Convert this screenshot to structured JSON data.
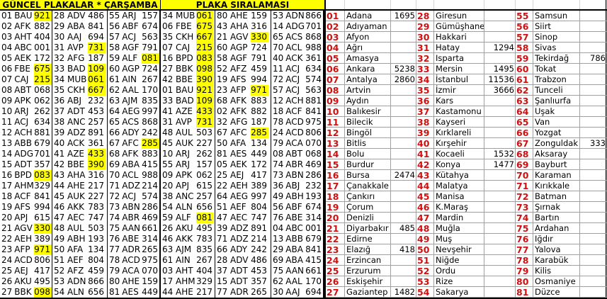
{
  "left_title": "GÜNCEL PLAKALAR * ÇARŞAMBA",
  "right_title": "PLAKA SIRALAMASI",
  "highlight_color": "#ffff00",
  "code_color": "#d01010",
  "current_plates": [
    [
      [
        "01",
        "BAU",
        "921",
        true
      ],
      [
        "02",
        "AFK",
        "882",
        false
      ],
      [
        "03",
        "AHT",
        "404",
        false
      ],
      [
        "04",
        "ABC",
        "001",
        false
      ],
      [
        "05",
        "AEK",
        "172",
        false
      ],
      [
        "06",
        "FBE",
        "675",
        true
      ],
      [
        "07",
        "CAJ",
        "215",
        true
      ],
      [
        "08",
        "ABT",
        "068",
        false
      ],
      [
        "09",
        "APK",
        "062",
        false
      ],
      [
        "10",
        "ARJ",
        "262",
        false
      ],
      [
        "11",
        "ACJ",
        "634",
        false
      ],
      [
        "12",
        "ACH",
        "881",
        false
      ],
      [
        "13",
        "ABB",
        "679",
        false
      ],
      [
        "14",
        "ADG",
        "701",
        false
      ],
      [
        "15",
        "ADT",
        "357",
        false
      ],
      [
        "16",
        "BPD",
        "083",
        true
      ],
      [
        "17",
        "AHM",
        "329",
        false
      ],
      [
        "18",
        "ACF",
        "841",
        false
      ],
      [
        "19",
        "AFS",
        "994",
        false
      ],
      [
        "20",
        "APJ",
        "615",
        false
      ],
      [
        "21",
        "AGV",
        "330",
        true
      ],
      [
        "22",
        "AEH",
        "389",
        false
      ],
      [
        "23",
        "AFP",
        "971",
        true
      ],
      [
        "24",
        "ACD",
        "806",
        false
      ],
      [
        "25",
        "AEJ",
        "417",
        false
      ],
      [
        "26",
        "AKU",
        "495",
        false
      ],
      [
        "27",
        "BBK",
        "098",
        true
      ]
    ],
    [
      [
        "28",
        "ADV",
        "486",
        false
      ],
      [
        "29",
        "ABA",
        "841",
        false
      ],
      [
        "30",
        "AAJ",
        "694",
        false
      ],
      [
        "31",
        "AVP",
        "731",
        true
      ],
      [
        "32",
        "AFG",
        "187",
        false
      ],
      [
        "33",
        "BAD",
        "109",
        true
      ],
      [
        "34",
        "MUB",
        "061",
        true
      ],
      [
        "35",
        "CKH",
        "667",
        true
      ],
      [
        "36",
        "ABJ",
        "232",
        false
      ],
      [
        "37",
        "ADT",
        "453",
        false
      ],
      [
        "38",
        "ANC",
        "257",
        false
      ],
      [
        "39",
        "ADZ",
        "891",
        false
      ],
      [
        "40",
        "ACK",
        "361",
        false
      ],
      [
        "41",
        "AZE",
        "433",
        true
      ],
      [
        "42",
        "BBE",
        "390",
        true
      ],
      [
        "43",
        "AHA",
        "316",
        false
      ],
      [
        "44",
        "AHE",
        "217",
        false
      ],
      [
        "45",
        "AUK",
        "227",
        false
      ],
      [
        "46",
        "AKK",
        "783",
        false
      ],
      [
        "47",
        "AEC",
        "747",
        false
      ],
      [
        "48",
        "AUL",
        "503",
        false
      ],
      [
        "49",
        "ABH",
        "193",
        false
      ],
      [
        "50",
        "AFA",
        "134",
        false
      ],
      [
        "51",
        "AEF",
        "804",
        false
      ],
      [
        "52",
        "AFZ",
        "459",
        false
      ],
      [
        "53",
        "ADN",
        "866",
        false
      ],
      [
        "54",
        "ALN",
        "656",
        false
      ]
    ],
    [
      [
        "55",
        "ARJ",
        "157",
        false
      ],
      [
        "56",
        "ABF",
        "674",
        false
      ],
      [
        "57",
        "ACJ",
        "563",
        false
      ],
      [
        "58",
        "AGF",
        "791",
        false
      ],
      [
        "59",
        "ALF",
        "081",
        true
      ],
      [
        "60",
        "AGP",
        "724",
        false
      ],
      [
        "61",
        "AIN",
        "267",
        false
      ],
      [
        "62",
        "AAL",
        "170",
        false
      ],
      [
        "63",
        "AJM",
        "835",
        false
      ],
      [
        "64",
        "AEG",
        "997",
        false
      ],
      [
        "65",
        "ACS",
        "868",
        false
      ],
      [
        "66",
        "ADY",
        "242",
        false
      ],
      [
        "67",
        "AFC",
        "285",
        true
      ],
      [
        "68",
        "AFK",
        "883",
        false
      ],
      [
        "69",
        "ABA",
        "415",
        false
      ],
      [
        "70",
        "ACL",
        "988",
        false
      ],
      [
        "71",
        "ADZ",
        "214",
        false
      ],
      [
        "72",
        "ACJ",
        "574",
        false
      ],
      [
        "73",
        "ABN",
        "286",
        false
      ],
      [
        "74",
        "ABR",
        "469",
        false
      ],
      [
        "75",
        "AAN",
        "661",
        false
      ],
      [
        "76",
        "ABE",
        "314",
        false
      ],
      [
        "77",
        "ADR",
        "265",
        false
      ],
      [
        "78",
        "ACD",
        "975",
        false
      ],
      [
        "79",
        "ACA",
        "070",
        false
      ],
      [
        "80",
        "AHE",
        "159",
        false
      ],
      [
        "81",
        "AES",
        "449",
        false
      ]
    ]
  ],
  "sorted_plates": [
    [
      [
        "34",
        "MUB",
        "061",
        true
      ],
      [
        "06",
        "FBE",
        "675",
        true
      ],
      [
        "35",
        "CKH",
        "667",
        true
      ],
      [
        "07",
        "CAJ",
        "215",
        true
      ],
      [
        "16",
        "BPD",
        "083",
        true
      ],
      [
        "27",
        "BBK",
        "098",
        true
      ],
      [
        "42",
        "BBE",
        "390",
        true
      ],
      [
        "01",
        "BAU",
        "921",
        true
      ],
      [
        "33",
        "BAD",
        "109",
        true
      ],
      [
        "41",
        "AZE",
        "433",
        true
      ],
      [
        "31",
        "AVP",
        "731",
        true
      ],
      [
        "48",
        "AUL",
        "503",
        false
      ],
      [
        "45",
        "AUK",
        "227",
        false
      ],
      [
        "10",
        "ARJ",
        "262",
        false
      ],
      [
        "55",
        "ARJ",
        "157",
        false
      ],
      [
        "09",
        "APK",
        "062",
        false
      ],
      [
        "20",
        "APJ",
        "615",
        false
      ],
      [
        "38",
        "ANC",
        "257",
        false
      ],
      [
        "54",
        "ALN",
        "656",
        false
      ],
      [
        "59",
        "ALF",
        "081",
        true
      ],
      [
        "26",
        "AKU",
        "495",
        false
      ],
      [
        "46",
        "AKK",
        "783",
        false
      ],
      [
        "63",
        "AJM",
        "835",
        false
      ],
      [
        "61",
        "AIN",
        "267",
        false
      ],
      [
        "03",
        "AHT",
        "404",
        false
      ],
      [
        "17",
        "AHM",
        "329",
        false
      ],
      [
        "44",
        "AHE",
        "217",
        false
      ]
    ],
    [
      [
        "80",
        "AHE",
        "159",
        false
      ],
      [
        "43",
        "AHA",
        "316",
        false
      ],
      [
        "21",
        "AGV",
        "330",
        true
      ],
      [
        "60",
        "AGP",
        "724",
        false
      ],
      [
        "58",
        "AGF",
        "791",
        false
      ],
      [
        "52",
        "AFZ",
        "459",
        false
      ],
      [
        "19",
        "AFS",
        "994",
        false
      ],
      [
        "23",
        "AFP",
        "971",
        true
      ],
      [
        "68",
        "AFK",
        "883",
        false
      ],
      [
        "02",
        "AFK",
        "882",
        false
      ],
      [
        "32",
        "AFG",
        "187",
        false
      ],
      [
        "67",
        "AFC",
        "285",
        true
      ],
      [
        "50",
        "AFA",
        "134",
        false
      ],
      [
        "81",
        "AES",
        "449",
        false
      ],
      [
        "05",
        "AEK",
        "172",
        false
      ],
      [
        "25",
        "AEJ",
        "417",
        false
      ],
      [
        "22",
        "AEH",
        "389",
        false
      ],
      [
        "64",
        "AEG",
        "997",
        false
      ],
      [
        "51",
        "AEF",
        "804",
        false
      ],
      [
        "47",
        "AEC",
        "747",
        false
      ],
      [
        "39",
        "ADZ",
        "891",
        false
      ],
      [
        "71",
        "ADZ",
        "214",
        false
      ],
      [
        "66",
        "ADY",
        "242",
        false
      ],
      [
        "28",
        "ADV",
        "486",
        false
      ],
      [
        "37",
        "ADT",
        "453",
        false
      ],
      [
        "15",
        "ADT",
        "357",
        false
      ],
      [
        "77",
        "ADR",
        "265",
        false
      ]
    ],
    [
      [
        "53",
        "ADN",
        "866",
        false
      ],
      [
        "14",
        "ADG",
        "701",
        false
      ],
      [
        "65",
        "ACS",
        "868",
        false
      ],
      [
        "70",
        "ACL",
        "988",
        false
      ],
      [
        "40",
        "ACK",
        "361",
        false
      ],
      [
        "11",
        "ACJ",
        "634",
        false
      ],
      [
        "72",
        "ACJ",
        "574",
        false
      ],
      [
        "57",
        "ACJ",
        "563",
        false
      ],
      [
        "12",
        "ACH",
        "881",
        false
      ],
      [
        "18",
        "ACF",
        "841",
        false
      ],
      [
        "78",
        "ACD",
        "975",
        false
      ],
      [
        "24",
        "ACD",
        "806",
        false
      ],
      [
        "79",
        "ACA",
        "070",
        false
      ],
      [
        "08",
        "ABT",
        "068",
        false
      ],
      [
        "74",
        "ABR",
        "469",
        false
      ],
      [
        "73",
        "ABN",
        "286",
        false
      ],
      [
        "36",
        "ABJ",
        "232",
        false
      ],
      [
        "49",
        "ABH",
        "193",
        false
      ],
      [
        "56",
        "ABF",
        "674",
        false
      ],
      [
        "76",
        "ABE",
        "314",
        false
      ],
      [
        "04",
        "ABC",
        "001",
        false
      ],
      [
        "13",
        "ABB",
        "679",
        false
      ],
      [
        "29",
        "ABA",
        "841",
        false
      ],
      [
        "69",
        "ABA",
        "415",
        false
      ],
      [
        "75",
        "AAN",
        "661",
        false
      ],
      [
        "62",
        "AAL",
        "170",
        false
      ],
      [
        "30",
        "AAJ",
        "694",
        false
      ]
    ]
  ],
  "cities": [
    [
      "01",
      "Adana",
      "1695"
    ],
    [
      "02",
      "Adıyaman",
      ""
    ],
    [
      "03",
      "Afyon",
      ""
    ],
    [
      "04",
      "Ağrı",
      ""
    ],
    [
      "05",
      "Amasya",
      ""
    ],
    [
      "06",
      "Ankara",
      "5238"
    ],
    [
      "07",
      "Antalya",
      "2860"
    ],
    [
      "08",
      "Artvin",
      ""
    ],
    [
      "09",
      "Aydın",
      ""
    ],
    [
      "10",
      "Balıkesir",
      ""
    ],
    [
      "11",
      "Bilecik",
      ""
    ],
    [
      "12",
      "Bingöl",
      ""
    ],
    [
      "13",
      "Bitlis",
      ""
    ],
    [
      "14",
      "Bolu",
      ""
    ],
    [
      "15",
      "Burdur",
      ""
    ],
    [
      "16",
      "Bursa",
      "2474"
    ],
    [
      "17",
      "Çanakkale",
      ""
    ],
    [
      "18",
      "Çankırı",
      ""
    ],
    [
      "19",
      "Çorum",
      ""
    ],
    [
      "20",
      "Denizli",
      ""
    ],
    [
      "21",
      "Diyarbakır",
      "485"
    ],
    [
      "22",
      "Edirne",
      ""
    ],
    [
      "23",
      "Elazığ",
      "418"
    ],
    [
      "24",
      "Erzincan",
      ""
    ],
    [
      "25",
      "Erzurum",
      ""
    ],
    [
      "26",
      "Eskişehir",
      ""
    ],
    [
      "27",
      "Gaziantep",
      "1482"
    ],
    [
      "28",
      "Giresun",
      ""
    ],
    [
      "29",
      "Gümüşhane",
      ""
    ],
    [
      "30",
      "Hakkari",
      ""
    ],
    [
      "31",
      "Hatay",
      "1294"
    ],
    [
      "32",
      "Isparta",
      ""
    ],
    [
      "33",
      "Mersin",
      "1495"
    ],
    [
      "34",
      "İstanbul",
      "11536"
    ],
    [
      "35",
      "İzmir",
      "3666"
    ],
    [
      "36",
      "Kars",
      ""
    ],
    [
      "37",
      "Kastamonu",
      ""
    ],
    [
      "38",
      "Kayseri",
      ""
    ],
    [
      "39",
      "Kırklareli",
      ""
    ],
    [
      "40",
      "Kırşehir",
      ""
    ],
    [
      "41",
      "Kocaeli",
      "1532"
    ],
    [
      "42",
      "Konya",
      "1477"
    ],
    [
      "43",
      "Kütahya",
      ""
    ],
    [
      "44",
      "Malatya",
      ""
    ],
    [
      "45",
      "Manisa",
      ""
    ],
    [
      "46",
      "K.Maraş",
      ""
    ],
    [
      "47",
      "Mardin",
      ""
    ],
    [
      "48",
      "Muğla",
      ""
    ],
    [
      "49",
      "Muş",
      ""
    ],
    [
      "50",
      "Nevşehir",
      ""
    ],
    [
      "51",
      "Niğde",
      ""
    ],
    [
      "52",
      "Ordu",
      ""
    ],
    [
      "53",
      "Rize",
      ""
    ],
    [
      "54",
      "Sakarya",
      ""
    ],
    [
      "55",
      "Samsun",
      ""
    ],
    [
      "56",
      "Siirt",
      ""
    ],
    [
      "57",
      "Sinop",
      ""
    ],
    [
      "58",
      "Sivas",
      ""
    ],
    [
      "59",
      "Tekirdağ",
      "786"
    ],
    [
      "60",
      "Tokat",
      ""
    ],
    [
      "61",
      "Trabzon",
      ""
    ],
    [
      "62",
      "Tunceli",
      ""
    ],
    [
      "63",
      "Şanlıurfa",
      ""
    ],
    [
      "64",
      "Uşak",
      ""
    ],
    [
      "65",
      "Van",
      ""
    ],
    [
      "66",
      "Yozgat",
      ""
    ],
    [
      "67",
      "Zonguldak",
      "333"
    ],
    [
      "68",
      "Aksaray",
      ""
    ],
    [
      "69",
      "Bayburt",
      ""
    ],
    [
      "70",
      "Karaman",
      ""
    ],
    [
      "71",
      "Kırıkkale",
      ""
    ],
    [
      "72",
      "Batman",
      ""
    ],
    [
      "73",
      "Şırnak",
      ""
    ],
    [
      "74",
      "Bartın",
      ""
    ],
    [
      "75",
      "Ardahan",
      ""
    ],
    [
      "76",
      "Iğdır",
      ""
    ],
    [
      "77",
      "Yalova",
      ""
    ],
    [
      "78",
      "Karabük",
      ""
    ],
    [
      "79",
      "Kilis",
      ""
    ],
    [
      "80",
      "Osmaniye",
      ""
    ],
    [
      "81",
      "Düzce",
      ""
    ]
  ]
}
